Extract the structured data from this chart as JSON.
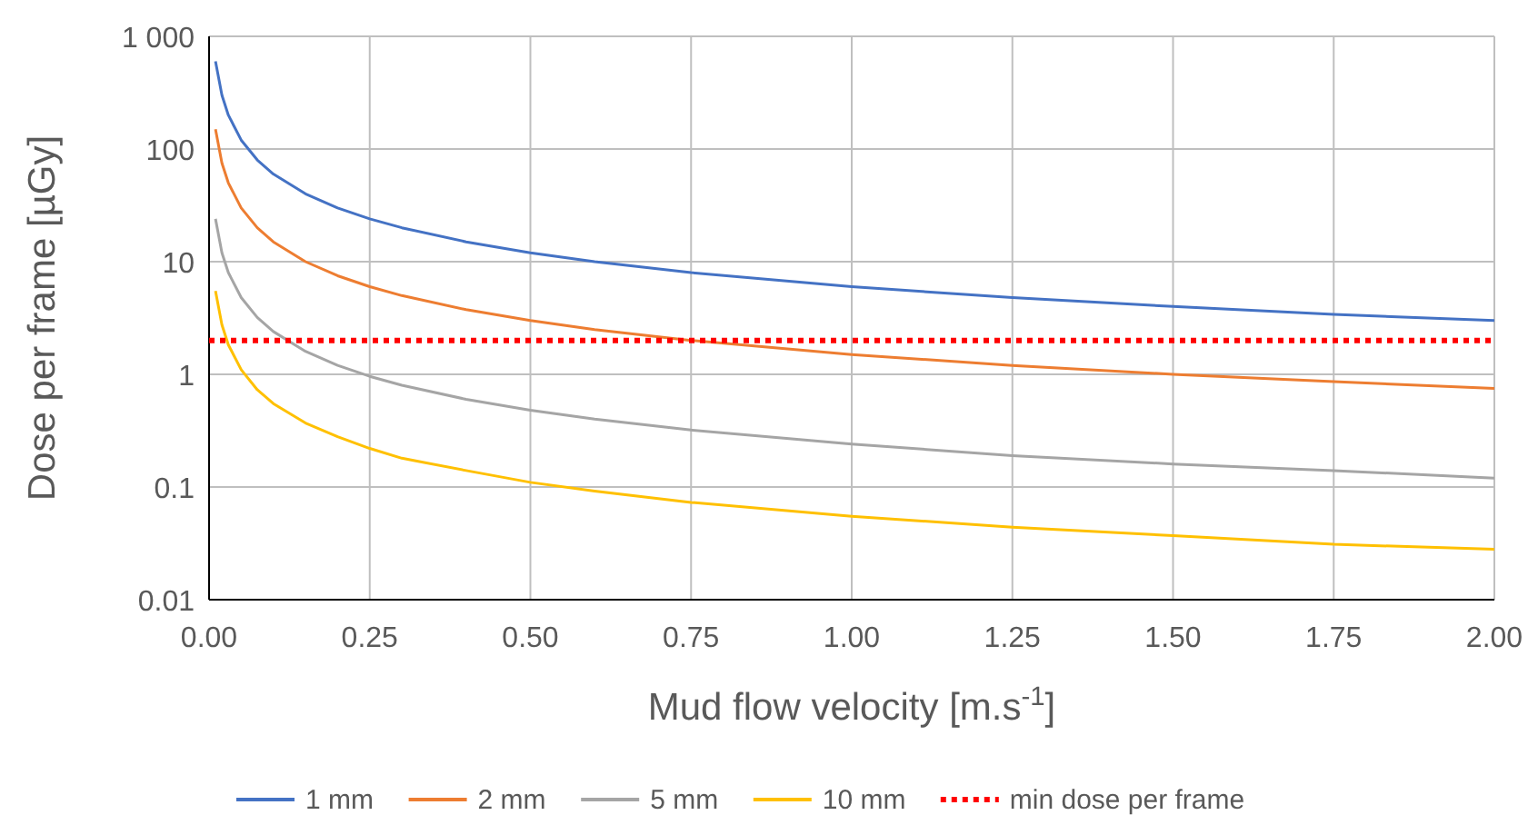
{
  "chart_data": {
    "type": "line",
    "xlabel": "Mud flow velocity [m.s$^{-1}$]",
    "ylabel": "Dose per frame [µGy]",
    "log": "y",
    "grid": true,
    "legend": "bottom",
    "marker": "none",
    "line_style": "solid",
    "x": [
      0.01,
      0.02,
      0.03,
      0.05,
      0.075,
      0.1,
      0.15,
      0.2,
      0.25,
      0.3,
      0.4,
      0.5,
      0.6,
      0.75,
      1,
      1.25,
      1.5,
      1.75,
      2
    ],
    "xlim": [
      0,
      2
    ],
    "xticks": [
      {
        "value": 0,
        "label": "0.00"
      },
      {
        "value": 0.25,
        "label": "0.25"
      },
      {
        "value": 0.5,
        "label": "0.50"
      },
      {
        "value": 0.75,
        "label": "0.75"
      },
      {
        "value": 1,
        "label": "1.00"
      },
      {
        "value": 1.25,
        "label": "1.25"
      },
      {
        "value": 1.5,
        "label": "1.50"
      },
      {
        "value": 1.75,
        "label": "1.75"
      },
      {
        "value": 2,
        "label": "2.00"
      }
    ],
    "ylim": [
      0.01,
      1000
    ],
    "yticks": [
      0.01,
      0.1,
      1,
      10,
      100,
      {
        "value": 1000,
        "label": "1 000"
      }
    ],
    "series": [
      {
        "name": "1 mm",
        "color": "#4472c4",
        "values": [
          600,
          300,
          200,
          120,
          80,
          60,
          40,
          30,
          24,
          20,
          15,
          12,
          10,
          8,
          6,
          4.8,
          4,
          3.4,
          3
        ]
      },
      {
        "name": "2 mm",
        "color": "#ed7d31",
        "values": [
          150,
          75,
          50,
          30,
          20,
          15,
          10,
          7.5,
          6,
          5,
          3.75,
          3,
          2.5,
          2,
          1.5,
          1.2,
          1,
          0.86,
          0.75
        ]
      },
      {
        "name": "5 mm",
        "color": "#a5a5a5",
        "values": [
          24,
          12,
          8,
          4.8,
          3.2,
          2.4,
          1.6,
          1.2,
          0.96,
          0.8,
          0.6,
          0.48,
          0.4,
          0.32,
          0.24,
          0.19,
          0.16,
          0.14,
          0.12
        ]
      },
      {
        "name": "10 mm",
        "color": "#ffc000",
        "values": [
          5.5,
          2.75,
          1.83,
          1.1,
          0.73,
          0.55,
          0.37,
          0.28,
          0.22,
          0.18,
          0.14,
          0.11,
          0.092,
          0.073,
          0.055,
          0.044,
          0.037,
          0.031,
          0.028
        ]
      }
    ],
    "ref_lines": [
      {
        "axis": "y",
        "value": 2,
        "label": "min dose per frame",
        "color": "#ff0000",
        "line_style": "dotted"
      }
    ]
  }
}
